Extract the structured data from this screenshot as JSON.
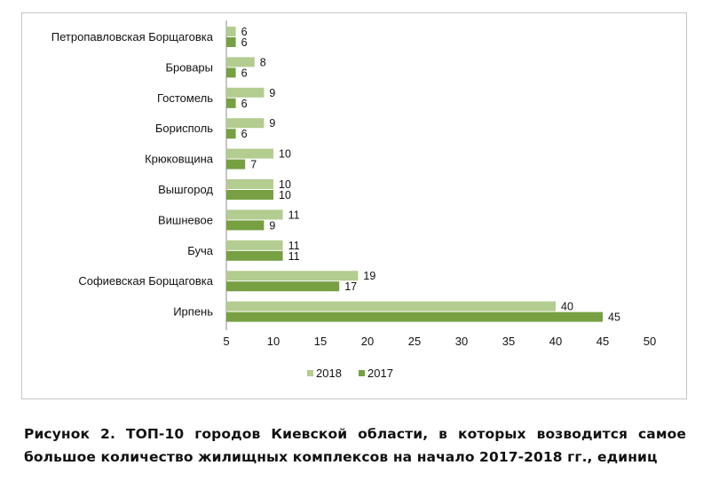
{
  "chart_data": {
    "type": "bar",
    "orientation": "horizontal",
    "categories": [
      "Петропавловская Борщаговка",
      "Бровары",
      "Гостомель",
      "Борисполь",
      "Крюковщина",
      "Вышгород",
      "Вишневое",
      "Буча",
      "Софиевская Борщаговка",
      "Ирпень"
    ],
    "series": [
      {
        "name": "2018",
        "values": [
          6,
          8,
          9,
          9,
          10,
          10,
          11,
          11,
          19,
          40
        ],
        "color": "#b3cc8f"
      },
      {
        "name": "2017",
        "values": [
          6,
          6,
          6,
          6,
          7,
          10,
          9,
          11,
          17,
          45
        ],
        "color": "#76a042"
      }
    ],
    "xlim": [
      5,
      50
    ],
    "xticks": [
      5,
      10,
      15,
      20,
      25,
      30,
      35,
      40,
      45,
      50
    ],
    "grid": false,
    "legend_position": "bottom",
    "data_labels": true
  },
  "caption": "Рисунок 2. ТОП-10 городов Киевской области, в которых возводится самое большое количество жилищных комплексов на начало 2017-2018 гг., единиц"
}
